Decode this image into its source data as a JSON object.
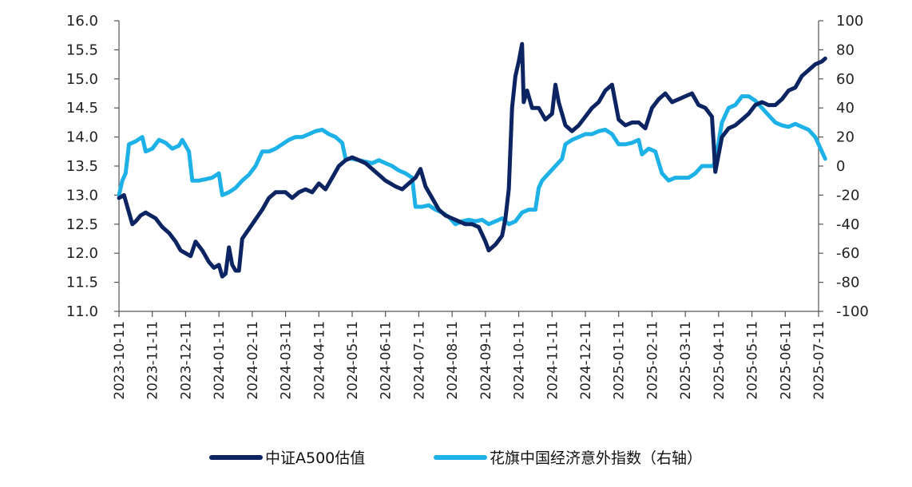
{
  "chart_data": {
    "type": "line",
    "title": "",
    "xlabel": "",
    "x_ticks": [
      "2023-10-11",
      "2023-11-11",
      "2023-12-11",
      "2024-01-11",
      "2024-02-11",
      "2024-03-11",
      "2024-04-11",
      "2024-05-11",
      "2024-06-11",
      "2024-07-11",
      "2024-08-11",
      "2024-09-11",
      "2024-10-11",
      "2024-11-11",
      "2024-12-11",
      "2025-01-11",
      "2025-02-11",
      "2025-03-11",
      "2025-04-11",
      "2025-05-11",
      "2025-06-11",
      "2025-07-11"
    ],
    "y_left": {
      "ylim": [
        11.0,
        16.0
      ],
      "ticks": [
        "11.0",
        "11.5",
        "12.0",
        "12.5",
        "13.0",
        "13.5",
        "14.0",
        "14.5",
        "15.0",
        "15.5",
        "16.0"
      ]
    },
    "y_right": {
      "ylim": [
        -100,
        100
      ],
      "ticks": [
        "-100",
        "-80",
        "-60",
        "-40",
        "-20",
        "0",
        "20",
        "40",
        "60",
        "80",
        "100"
      ]
    },
    "grid": false,
    "legend_position": "bottom",
    "series": [
      {
        "name": "中证A500估值",
        "axis": "left",
        "color": "#0c2461",
        "points": [
          [
            0,
            12.95
          ],
          [
            0.15,
            13.0
          ],
          [
            0.3,
            12.7
          ],
          [
            0.4,
            12.5
          ],
          [
            0.5,
            12.55
          ],
          [
            0.65,
            12.65
          ],
          [
            0.8,
            12.7
          ],
          [
            0.95,
            12.65
          ],
          [
            1.1,
            12.6
          ],
          [
            1.3,
            12.45
          ],
          [
            1.5,
            12.35
          ],
          [
            1.7,
            12.2
          ],
          [
            1.85,
            12.05
          ],
          [
            2.0,
            12.0
          ],
          [
            2.15,
            11.95
          ],
          [
            2.3,
            12.2
          ],
          [
            2.5,
            12.05
          ],
          [
            2.7,
            11.85
          ],
          [
            2.85,
            11.75
          ],
          [
            3.0,
            11.8
          ],
          [
            3.1,
            11.6
          ],
          [
            3.2,
            11.65
          ],
          [
            3.3,
            12.1
          ],
          [
            3.4,
            11.8
          ],
          [
            3.5,
            11.7
          ],
          [
            3.6,
            11.7
          ],
          [
            3.7,
            12.25
          ],
          [
            4.0,
            12.5
          ],
          [
            4.3,
            12.75
          ],
          [
            4.5,
            12.95
          ],
          [
            4.7,
            13.05
          ],
          [
            5.0,
            13.05
          ],
          [
            5.2,
            12.95
          ],
          [
            5.4,
            13.05
          ],
          [
            5.6,
            13.1
          ],
          [
            5.8,
            13.05
          ],
          [
            6.0,
            13.2
          ],
          [
            6.2,
            13.1
          ],
          [
            6.4,
            13.3
          ],
          [
            6.6,
            13.5
          ],
          [
            6.8,
            13.6
          ],
          [
            7.0,
            13.65
          ],
          [
            7.2,
            13.6
          ],
          [
            7.4,
            13.55
          ],
          [
            7.6,
            13.45
          ],
          [
            7.8,
            13.35
          ],
          [
            8.0,
            13.25
          ],
          [
            8.3,
            13.15
          ],
          [
            8.5,
            13.1
          ],
          [
            8.7,
            13.2
          ],
          [
            8.9,
            13.3
          ],
          [
            9.05,
            13.45
          ],
          [
            9.2,
            13.15
          ],
          [
            9.4,
            12.95
          ],
          [
            9.6,
            12.75
          ],
          [
            9.8,
            12.65
          ],
          [
            10.0,
            12.6
          ],
          [
            10.2,
            12.55
          ],
          [
            10.4,
            12.5
          ],
          [
            10.6,
            12.5
          ],
          [
            10.8,
            12.45
          ],
          [
            11.0,
            12.2
          ],
          [
            11.1,
            12.05
          ],
          [
            11.3,
            12.15
          ],
          [
            11.5,
            12.3
          ],
          [
            11.6,
            12.6
          ],
          [
            11.7,
            13.1
          ],
          [
            11.8,
            14.5
          ],
          [
            11.9,
            15.05
          ],
          [
            12.0,
            15.3
          ],
          [
            12.1,
            15.6
          ],
          [
            12.15,
            14.6
          ],
          [
            12.25,
            14.8
          ],
          [
            12.4,
            14.5
          ],
          [
            12.6,
            14.5
          ],
          [
            12.8,
            14.3
          ],
          [
            13.0,
            14.4
          ],
          [
            13.1,
            14.9
          ],
          [
            13.2,
            14.6
          ],
          [
            13.4,
            14.2
          ],
          [
            13.6,
            14.1
          ],
          [
            13.8,
            14.2
          ],
          [
            14.0,
            14.35
          ],
          [
            14.2,
            14.5
          ],
          [
            14.4,
            14.6
          ],
          [
            14.6,
            14.8
          ],
          [
            14.8,
            14.9
          ],
          [
            15.0,
            14.3
          ],
          [
            15.2,
            14.2
          ],
          [
            15.4,
            14.25
          ],
          [
            15.6,
            14.25
          ],
          [
            15.8,
            14.15
          ],
          [
            16.0,
            14.5
          ],
          [
            16.2,
            14.65
          ],
          [
            16.4,
            14.75
          ],
          [
            16.6,
            14.6
          ],
          [
            16.8,
            14.65
          ],
          [
            17.0,
            14.7
          ],
          [
            17.2,
            14.75
          ],
          [
            17.4,
            14.55
          ],
          [
            17.6,
            14.5
          ],
          [
            17.8,
            14.35
          ],
          [
            17.85,
            13.9
          ],
          [
            17.9,
            13.4
          ],
          [
            18.1,
            14.0
          ],
          [
            18.3,
            14.15
          ],
          [
            18.5,
            14.2
          ],
          [
            18.7,
            14.3
          ],
          [
            18.9,
            14.4
          ],
          [
            19.1,
            14.55
          ],
          [
            19.3,
            14.6
          ],
          [
            19.5,
            14.55
          ],
          [
            19.7,
            14.55
          ],
          [
            19.9,
            14.65
          ],
          [
            20.1,
            14.8
          ],
          [
            20.3,
            14.85
          ],
          [
            20.5,
            15.05
          ],
          [
            20.7,
            15.15
          ],
          [
            20.9,
            15.25
          ],
          [
            21.1,
            15.3
          ],
          [
            21.2,
            15.35
          ]
        ]
      },
      {
        "name": "花旗中国经济意外指数（右轴）",
        "axis": "right",
        "color": "#1eb1e7",
        "points": [
          [
            0,
            -20
          ],
          [
            0.1,
            -10
          ],
          [
            0.2,
            -5
          ],
          [
            0.3,
            15
          ],
          [
            0.5,
            17
          ],
          [
            0.7,
            20
          ],
          [
            0.8,
            10
          ],
          [
            1.0,
            12
          ],
          [
            1.2,
            18
          ],
          [
            1.4,
            16
          ],
          [
            1.6,
            12
          ],
          [
            1.8,
            14
          ],
          [
            1.9,
            18
          ],
          [
            2.1,
            10
          ],
          [
            2.2,
            -10
          ],
          [
            2.4,
            -10
          ],
          [
            2.6,
            -9
          ],
          [
            2.8,
            -8
          ],
          [
            3.0,
            -5
          ],
          [
            3.1,
            -20
          ],
          [
            3.3,
            -18
          ],
          [
            3.5,
            -15
          ],
          [
            3.7,
            -10
          ],
          [
            3.9,
            -6
          ],
          [
            4.1,
            0
          ],
          [
            4.3,
            10
          ],
          [
            4.5,
            10
          ],
          [
            4.7,
            12
          ],
          [
            4.9,
            15
          ],
          [
            5.1,
            18
          ],
          [
            5.3,
            20
          ],
          [
            5.5,
            20
          ],
          [
            5.7,
            22
          ],
          [
            5.9,
            24
          ],
          [
            6.1,
            25
          ],
          [
            6.3,
            22
          ],
          [
            6.5,
            20
          ],
          [
            6.7,
            16
          ],
          [
            6.8,
            5
          ],
          [
            7.0,
            5
          ],
          [
            7.2,
            4
          ],
          [
            7.4,
            3
          ],
          [
            7.6,
            2
          ],
          [
            7.8,
            4
          ],
          [
            8.0,
            2
          ],
          [
            8.2,
            0
          ],
          [
            8.4,
            -3
          ],
          [
            8.6,
            -5
          ],
          [
            8.8,
            -8
          ],
          [
            8.9,
            -28
          ],
          [
            9.1,
            -28
          ],
          [
            9.3,
            -27
          ],
          [
            9.5,
            -30
          ],
          [
            9.7,
            -32
          ],
          [
            9.9,
            -35
          ],
          [
            10.1,
            -40
          ],
          [
            10.3,
            -38
          ],
          [
            10.5,
            -37
          ],
          [
            10.7,
            -38
          ],
          [
            10.9,
            -37
          ],
          [
            11.1,
            -40
          ],
          [
            11.3,
            -38
          ],
          [
            11.5,
            -36
          ],
          [
            11.7,
            -40
          ],
          [
            11.9,
            -38
          ],
          [
            12.1,
            -32
          ],
          [
            12.3,
            -30
          ],
          [
            12.5,
            -30
          ],
          [
            12.6,
            -15
          ],
          [
            12.7,
            -10
          ],
          [
            12.9,
            -5
          ],
          [
            13.1,
            0
          ],
          [
            13.3,
            5
          ],
          [
            13.4,
            15
          ],
          [
            13.6,
            18
          ],
          [
            13.8,
            20
          ],
          [
            14.0,
            22
          ],
          [
            14.2,
            22
          ],
          [
            14.4,
            24
          ],
          [
            14.6,
            25
          ],
          [
            14.8,
            22
          ],
          [
            15.0,
            15
          ],
          [
            15.2,
            15
          ],
          [
            15.4,
            16
          ],
          [
            15.6,
            18
          ],
          [
            15.7,
            8
          ],
          [
            15.9,
            12
          ],
          [
            16.1,
            10
          ],
          [
            16.3,
            -5
          ],
          [
            16.5,
            -10
          ],
          [
            16.7,
            -8
          ],
          [
            16.9,
            -8
          ],
          [
            17.1,
            -8
          ],
          [
            17.3,
            -5
          ],
          [
            17.5,
            0
          ],
          [
            17.7,
            0
          ],
          [
            17.85,
            0
          ],
          [
            17.95,
            10
          ],
          [
            18.1,
            30
          ],
          [
            18.3,
            40
          ],
          [
            18.5,
            42
          ],
          [
            18.7,
            48
          ],
          [
            18.9,
            48
          ],
          [
            19.1,
            45
          ],
          [
            19.3,
            40
          ],
          [
            19.5,
            35
          ],
          [
            19.7,
            30
          ],
          [
            19.9,
            28
          ],
          [
            20.1,
            27
          ],
          [
            20.3,
            29
          ],
          [
            20.5,
            27
          ],
          [
            20.7,
            25
          ],
          [
            20.9,
            20
          ],
          [
            21.0,
            15
          ],
          [
            21.1,
            10
          ],
          [
            21.2,
            5
          ]
        ]
      }
    ]
  }
}
